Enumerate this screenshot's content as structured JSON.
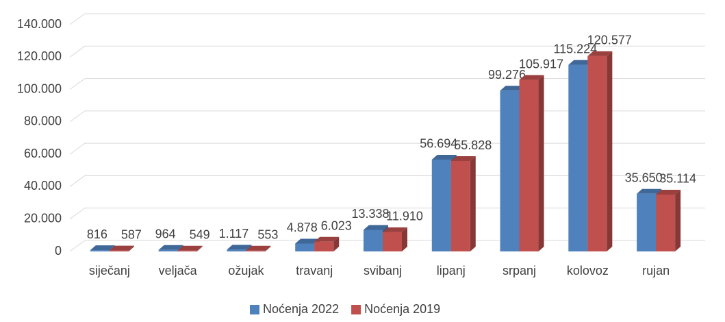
{
  "chart_data": {
    "type": "bar3d",
    "categories": [
      "siječanj",
      "veljača",
      "ožujak",
      "travanj",
      "svibanj",
      "lipanj",
      "srpanj",
      "kolovoz",
      "rujan"
    ],
    "series": [
      {
        "name": "Noćenja 2022",
        "color": "#4f81bd",
        "values": [
          816,
          964,
          1117,
          4878,
          13338,
          56694,
          99276,
          115224,
          35650
        ],
        "value_labels": [
          "816",
          "964",
          "1.117",
          "4.878",
          "13.338",
          "56.694",
          "99.276",
          "115.224",
          "35.650"
        ]
      },
      {
        "name": "Noćenja 2019",
        "color": "#c0504d",
        "values": [
          587,
          549,
          553,
          6023,
          11910,
          55828,
          105917,
          120577,
          35114
        ],
        "value_labels": [
          "587",
          "549",
          "553",
          "6.023",
          "11.910",
          "55.828",
          "105.917",
          "120.577",
          "35.114"
        ]
      }
    ],
    "ylim": [
      0,
      140000
    ],
    "yticks": [
      0,
      {
        "value": 20000,
        "label": "20.000"
      },
      {
        "value": 40000,
        "label": "40.000"
      },
      {
        "value": 60000,
        "label": "60.000"
      },
      {
        "value": 80000,
        "label": "80.000"
      },
      {
        "value": 100000,
        "label": "100.000"
      },
      {
        "value": 120000,
        "label": "120.000"
      },
      {
        "value": 140000,
        "label": "140.000"
      }
    ],
    "grid": true,
    "legend": "bottom"
  }
}
